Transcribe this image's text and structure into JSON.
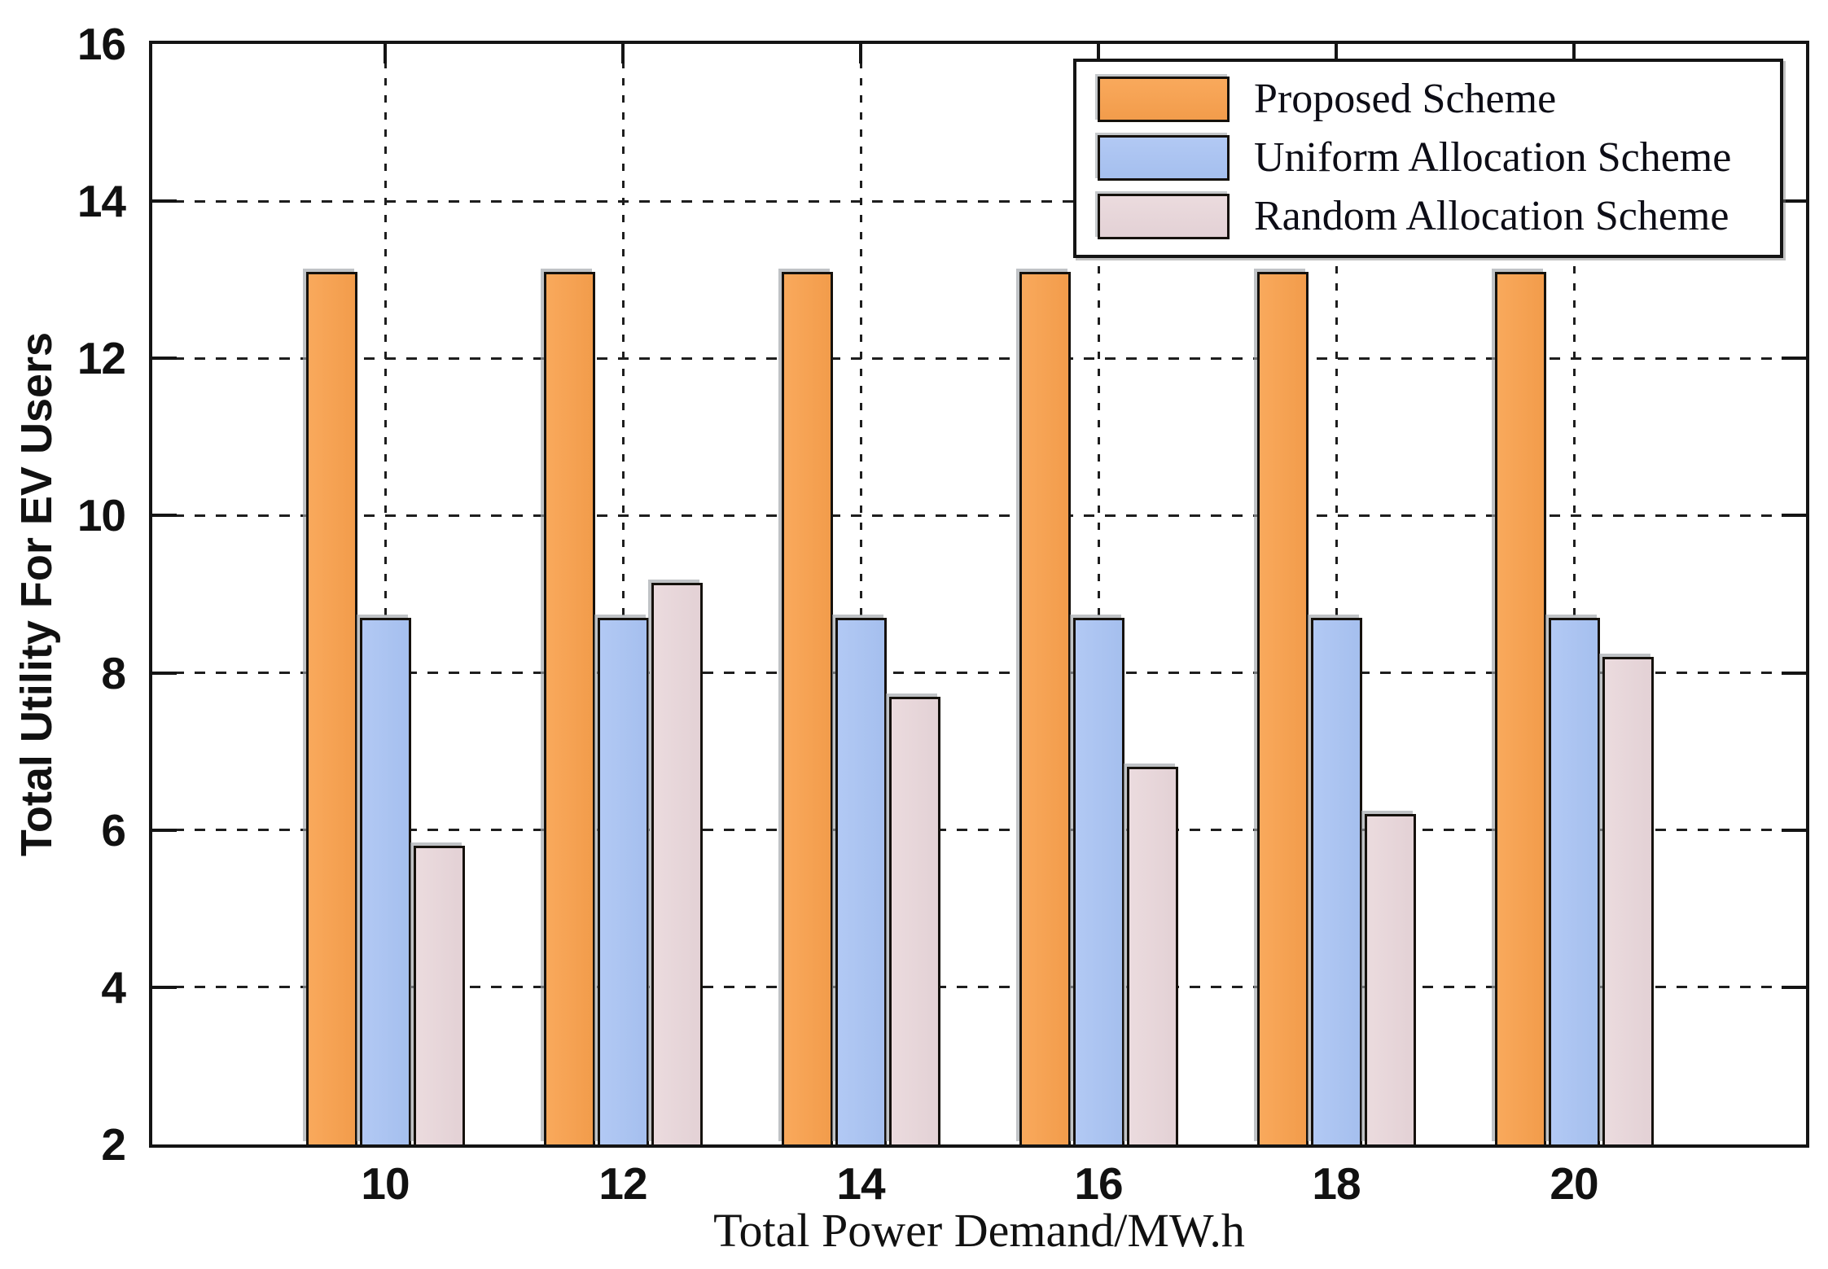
{
  "figure": {
    "background": "#ffffff",
    "frame_color": "#141414",
    "grid_color": "#1e1e1e",
    "text_color": "#111111"
  },
  "chart_data": {
    "type": "bar",
    "title": "",
    "xlabel": "Total Power Demand/MW.h",
    "ylabel": "Total Utility For EV Users",
    "categories": [
      "10",
      "12",
      "14",
      "16",
      "18",
      "20"
    ],
    "series": [
      {
        "name": "Proposed Scheme",
        "color": "#F9A95C",
        "color2": "#F29C4B",
        "values": [
          13.1,
          13.1,
          13.1,
          13.1,
          13.1,
          13.1
        ]
      },
      {
        "name": "Uniform Allocation Scheme",
        "color": "#B2C9F4",
        "color2": "#A5BfEE",
        "values": [
          8.7,
          8.7,
          8.7,
          8.7,
          8.7,
          8.7
        ]
      },
      {
        "name": "Random Allocation Scheme",
        "color": "#EBDBDE",
        "color2": "#E3D1D5",
        "values": [
          5.8,
          9.15,
          7.7,
          6.8,
          6.2,
          8.2
        ]
      }
    ],
    "ylim": [
      2,
      16
    ],
    "yticks": [
      2,
      4,
      6,
      8,
      10,
      12,
      14,
      16
    ],
    "grid": "dashed-both-axes",
    "legend_position": "top-right"
  }
}
